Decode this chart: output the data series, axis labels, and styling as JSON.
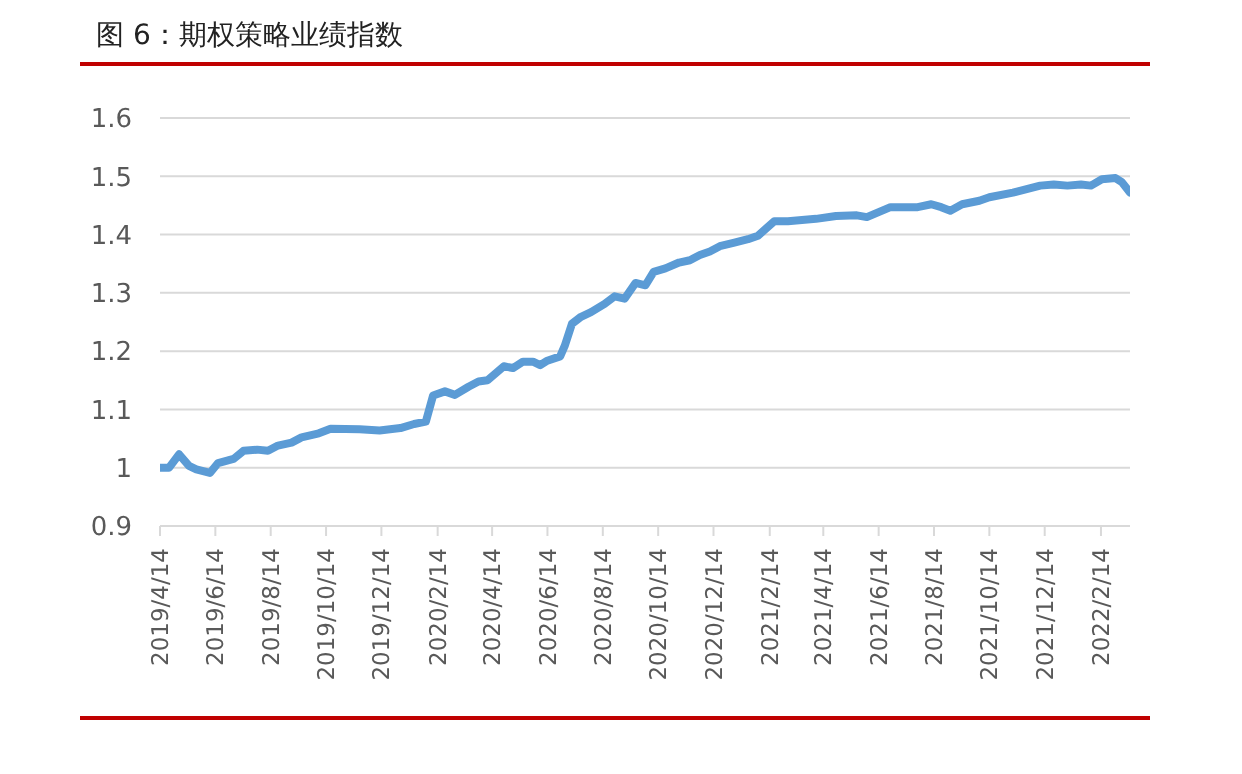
{
  "chart_data": {
    "type": "line",
    "title": "图 6：期权策略业绩指数",
    "x": [
      "2019-04-14",
      "2019-04-24",
      "2019-05-05",
      "2019-05-16",
      "2019-05-24",
      "2019-06-08",
      "2019-06-17",
      "2019-07-04",
      "2019-07-15",
      "2019-07-30",
      "2019-08-11",
      "2019-08-22",
      "2019-09-06",
      "2019-09-17",
      "2019-10-06",
      "2019-10-19",
      "2019-11-20",
      "2019-12-12",
      "2020-01-04",
      "2020-01-19",
      "2020-02-01",
      "2020-02-09",
      "2020-02-22",
      "2020-03-04",
      "2020-03-19",
      "2020-03-30",
      "2020-04-09",
      "2020-04-27",
      "2020-05-07",
      "2020-05-18",
      "2020-05-29",
      "2020-06-06",
      "2020-06-13",
      "2020-06-28",
      "2020-07-03",
      "2020-07-11",
      "2020-07-21",
      "2020-08-01",
      "2020-08-16",
      "2020-08-27",
      "2020-09-07",
      "2020-09-19",
      "2020-09-30",
      "2020-10-09",
      "2020-10-22",
      "2020-11-06",
      "2020-11-18",
      "2020-11-29",
      "2020-12-10",
      "2020-12-21",
      "2021-01-06",
      "2021-01-21",
      "2021-02-01",
      "2021-02-19",
      "2021-03-06",
      "2021-04-06",
      "2021-04-28",
      "2021-05-21",
      "2021-06-01",
      "2021-06-27",
      "2021-07-27",
      "2021-08-11",
      "2021-08-22",
      "2021-09-01",
      "2021-09-14",
      "2021-10-03",
      "2021-10-14",
      "2021-11-09",
      "2021-12-09",
      "2021-12-24",
      "2022-01-08",
      "2022-01-23",
      "2022-02-03",
      "2022-02-15",
      "2022-03-02",
      "2022-03-09",
      "2022-03-18"
    ],
    "series": [
      {
        "color": "#5b9bd5",
        "values": [
          1.0,
          1.0,
          1.023,
          1.003,
          0.997,
          0.991,
          1.008,
          1.015,
          1.029,
          1.031,
          1.029,
          1.038,
          1.043,
          1.052,
          1.059,
          1.067,
          1.066,
          1.064,
          1.068,
          1.075,
          1.079,
          1.124,
          1.131,
          1.125,
          1.139,
          1.148,
          1.15,
          1.174,
          1.171,
          1.182,
          1.182,
          1.176,
          1.183,
          1.191,
          1.209,
          1.247,
          1.259,
          1.267,
          1.281,
          1.294,
          1.29,
          1.317,
          1.313,
          1.336,
          1.342,
          1.352,
          1.356,
          1.365,
          1.371,
          1.38,
          1.386,
          1.392,
          1.398,
          1.423,
          1.423,
          1.427,
          1.432,
          1.433,
          1.43,
          1.447,
          1.447,
          1.452,
          1.447,
          1.441,
          1.452,
          1.458,
          1.464,
          1.472,
          1.484,
          1.486,
          1.484,
          1.486,
          1.484,
          1.495,
          1.497,
          1.49,
          1.472
        ]
      }
    ],
    "xlim": [
      "2019-04-14",
      "2022-03-18"
    ],
    "xticks": [
      {
        "value": "2019-04-14",
        "label": "2019/4/14"
      },
      {
        "value": "2019-06-14",
        "label": "2019/6/14"
      },
      {
        "value": "2019-08-14",
        "label": "2019/8/14"
      },
      {
        "value": "2019-10-14",
        "label": "2019/10/14"
      },
      {
        "value": "2019-12-14",
        "label": "2019/12/14"
      },
      {
        "value": "2020-02-14",
        "label": "2020/2/14"
      },
      {
        "value": "2020-04-14",
        "label": "2020/4/14"
      },
      {
        "value": "2020-06-14",
        "label": "2020/6/14"
      },
      {
        "value": "2020-08-14",
        "label": "2020/8/14"
      },
      {
        "value": "2020-10-14",
        "label": "2020/10/14"
      },
      {
        "value": "2020-12-14",
        "label": "2020/12/14"
      },
      {
        "value": "2021-02-14",
        "label": "2021/2/14"
      },
      {
        "value": "2021-04-14",
        "label": "2021/4/14"
      },
      {
        "value": "2021-06-14",
        "label": "2021/6/14"
      },
      {
        "value": "2021-08-14",
        "label": "2021/8/14"
      },
      {
        "value": "2021-10-14",
        "label": "2021/10/14"
      },
      {
        "value": "2021-12-14",
        "label": "2021/12/14"
      },
      {
        "value": "2022-02-14",
        "label": "2022/2/14"
      }
    ],
    "ylim": [
      0.9,
      1.6
    ],
    "yticks": [
      0.9,
      1,
      1.1,
      1.2,
      1.3,
      1.4,
      1.5,
      1.6
    ],
    "grid": "y",
    "marker": "none",
    "line_style": "solid"
  }
}
